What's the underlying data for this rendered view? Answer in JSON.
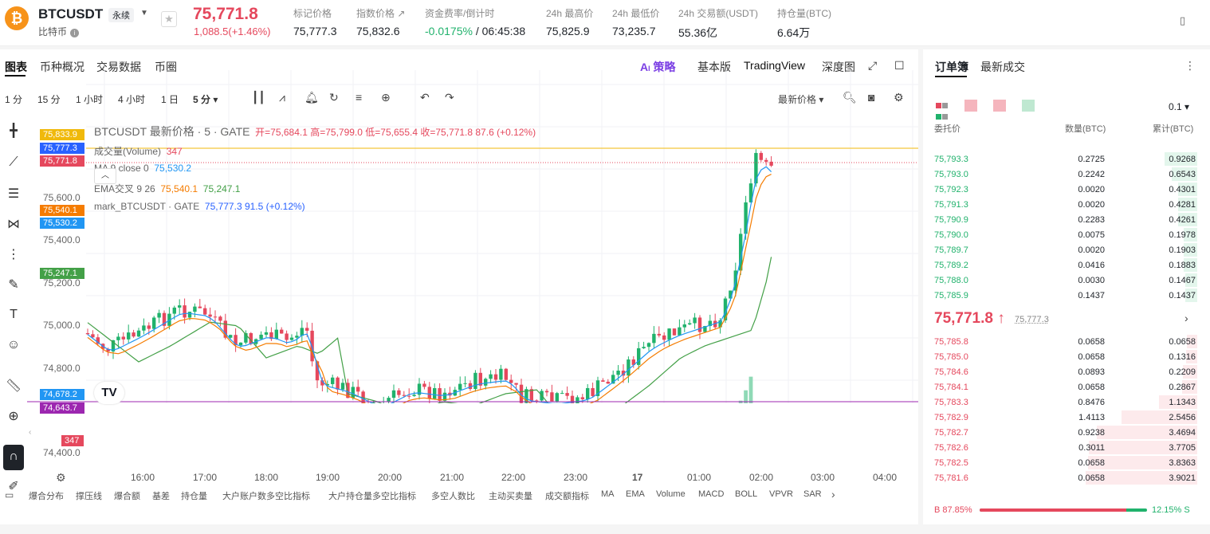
{
  "header": {
    "symbol": "BTCUSDT",
    "contract_type": "永续",
    "coin_name": "比特币",
    "coin_glyph": "₿",
    "last_price": "75,771.8",
    "change": "1,088.5(+1.46%)",
    "stats": [
      {
        "label": "标记价格",
        "value": "75,777.3"
      },
      {
        "label": "指数价格 ↗",
        "value": "75,832.6"
      },
      {
        "label": "资金费率/倒计时",
        "value": "-0.0175%",
        "value2": " / 06:45:38"
      },
      {
        "label": "24h 最高价",
        "value": "75,825.9"
      },
      {
        "label": "24h 最低价",
        "value": "73,235.7"
      },
      {
        "label": "24h 交易额(USDT)",
        "value": "55.36亿"
      },
      {
        "label": "持仓量(BTC)",
        "value": "6.64万"
      }
    ]
  },
  "chart_tabs": [
    "图表",
    "币种概况",
    "交易数据",
    "币圈"
  ],
  "chart_nav": {
    "strategy": "策略",
    "basic": "基本版",
    "tradingview": "TradingView",
    "depth": "深度图"
  },
  "timeframes": [
    "1 分",
    "15 分",
    "1 小时",
    "4 小时",
    "1 日",
    "5 分 ▾"
  ],
  "price_source": "最新价格",
  "legend": {
    "title": "BTCUSDT 最新价格 · 5 · GATE",
    "ohlc": "开=75,684.1  高=75,799.0  低=75,655.4  收=75,771.8  87.6 (+0.12%)",
    "volume": "成交量(Volume)",
    "volume_val": "347",
    "ma": "MA 9 close 0",
    "ma_val": "75,530.2",
    "ema": "EMA交叉 9 26",
    "ema_val1": "75,540.1",
    "ema_val2": "75,247.1",
    "mark": "mark_BTCUSDT · GATE",
    "mark_val": "75,777.3  91.5 (+0.12%)"
  },
  "price_labels": [
    {
      "text": "75,833.9",
      "color": "#f0b90b"
    },
    {
      "text": "75,777.3",
      "color": "#2962ff"
    },
    {
      "text": "75,771.8",
      "color": "#e5485d"
    },
    {
      "text": "75,540.1",
      "color": "#f57c00"
    },
    {
      "text": "75,530.2",
      "color": "#2196f3"
    },
    {
      "text": "75,247.1",
      "color": "#43a047"
    },
    {
      "text": "74,678.2",
      "color": "#2196f3"
    },
    {
      "text": "74,643.7",
      "color": "#9c27b0"
    },
    {
      "text": "347",
      "color": "#e5485d"
    }
  ],
  "y_axis": [
    "75,600.0",
    "75,400.0",
    "75,200.0",
    "75,000.0",
    "74,800.0",
    "74,400.0"
  ],
  "x_axis": [
    "16:00",
    "17:00",
    "18:00",
    "19:00",
    "20:00",
    "21:00",
    "22:00",
    "23:00",
    "17",
    "01:00",
    "02:00",
    "03:00",
    "04:00"
  ],
  "indicators": [
    "爆合分布",
    "撑压线",
    "爆合额",
    "基差",
    "持仓量",
    "大户账户数多空比指标",
    "大户持仓量多空比指标",
    "多空人数比",
    "主动买卖量",
    "成交额指标",
    "MA",
    "EMA",
    "Volume",
    "MACD",
    "BOLL",
    "VPVR",
    "SAR"
  ],
  "orderbook": {
    "tabs": [
      "订单簿",
      "最新成交"
    ],
    "precision": "0.1 ▾",
    "cols": [
      "委托价",
      "数量(BTC)",
      "累计(BTC)"
    ],
    "asks": [
      {
        "p": "75,793.3",
        "q": "0.2725",
        "t": "0.9268",
        "d": 0.24
      },
      {
        "p": "75,793.0",
        "q": "0.2242",
        "t": "0.6543",
        "d": 0.17
      },
      {
        "p": "75,792.3",
        "q": "0.0020",
        "t": "0.4301",
        "d": 0.11
      },
      {
        "p": "75,791.3",
        "q": "0.0020",
        "t": "0.4281",
        "d": 0.11
      },
      {
        "p": "75,790.9",
        "q": "0.2283",
        "t": "0.4261",
        "d": 0.11
      },
      {
        "p": "75,790.0",
        "q": "0.0075",
        "t": "0.1978",
        "d": 0.05
      },
      {
        "p": "75,789.7",
        "q": "0.0020",
        "t": "0.1903",
        "d": 0.05
      },
      {
        "p": "75,789.2",
        "q": "0.0416",
        "t": "0.1883",
        "d": 0.05
      },
      {
        "p": "75,788.0",
        "q": "0.0030",
        "t": "0.1467",
        "d": 0.04
      },
      {
        "p": "75,785.9",
        "q": "0.1437",
        "t": "0.1437",
        "d": 0.04
      }
    ],
    "mid": "75,771.8 ↑",
    "mark": "75,777.3",
    "bids": [
      {
        "p": "75,785.8",
        "q": "0.0658",
        "t": "0.0658",
        "d": 0.02
      },
      {
        "p": "75,785.0",
        "q": "0.0658",
        "t": "0.1316",
        "d": 0.03
      },
      {
        "p": "75,784.6",
        "q": "0.0893",
        "t": "0.2209",
        "d": 0.06
      },
      {
        "p": "75,784.1",
        "q": "0.0658",
        "t": "0.2867",
        "d": 0.07
      },
      {
        "p": "75,783.3",
        "q": "0.8476",
        "t": "1.1343",
        "d": 0.29
      },
      {
        "p": "75,782.9",
        "q": "1.4113",
        "t": "2.5456",
        "d": 0.65
      },
      {
        "p": "75,782.7",
        "q": "0.9238",
        "t": "3.4694",
        "d": 0.89
      },
      {
        "p": "75,782.6",
        "q": "0.3011",
        "t": "3.7705",
        "d": 0.97
      },
      {
        "p": "75,782.5",
        "q": "0.0658",
        "t": "3.8363",
        "d": 0.98
      },
      {
        "p": "75,781.6",
        "q": "0.0658",
        "t": "3.9021",
        "d": 1.0
      }
    ],
    "ratio_b": "B 87.85%",
    "ratio_s": "12.15% S",
    "ratio_b_frac": 0.8785
  }
}
